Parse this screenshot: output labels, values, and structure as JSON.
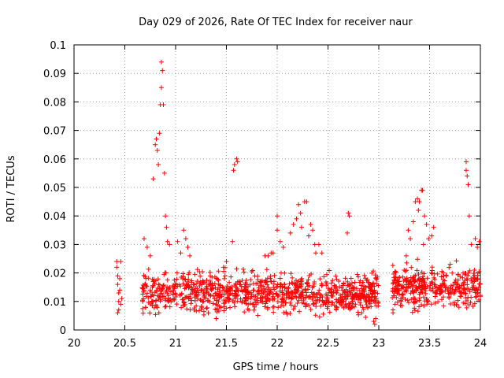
{
  "chart_data": {
    "type": "scatter",
    "title": "Day 029 of 2026, Rate Of TEC Index for receiver naur",
    "xlabel": "GPS time / hours",
    "ylabel": "ROTI / TECUs",
    "xlim": [
      20,
      24
    ],
    "ylim": [
      0,
      0.1
    ],
    "xticks": [
      "20",
      "20.5",
      "21",
      "21.5",
      "22",
      "22.5",
      "23",
      "23.5",
      "24"
    ],
    "yticks": [
      "0",
      "0.01",
      "0.02",
      "0.03",
      "0.04",
      "0.05",
      "0.06",
      "0.07",
      "0.08",
      "0.09",
      "0.1"
    ],
    "grid": true,
    "marker": "+",
    "series": [
      {
        "color": "#ff0000",
        "points": [
          [
            20.42,
            0.024
          ],
          [
            20.42,
            0.022
          ],
          [
            20.43,
            0.019
          ],
          [
            20.43,
            0.016
          ],
          [
            20.44,
            0.013
          ],
          [
            20.44,
            0.01
          ],
          [
            20.44,
            0.007
          ],
          [
            20.45,
            0.014
          ],
          [
            20.45,
            0.018
          ],
          [
            20.46,
            0.009
          ],
          [
            20.47,
            0.011
          ],
          [
            20.43,
            0.006
          ],
          [
            20.46,
            0.024
          ],
          [
            20.86,
            0.094
          ],
          [
            20.87,
            0.091
          ],
          [
            20.86,
            0.085
          ],
          [
            20.85,
            0.079
          ],
          [
            20.88,
            0.079
          ],
          [
            20.81,
            0.067
          ],
          [
            20.8,
            0.065
          ],
          [
            20.82,
            0.063
          ],
          [
            20.84,
            0.069
          ],
          [
            20.83,
            0.058
          ],
          [
            20.78,
            0.053
          ],
          [
            20.89,
            0.055
          ],
          [
            20.9,
            0.04
          ],
          [
            20.91,
            0.036
          ],
          [
            20.92,
            0.031
          ],
          [
            20.94,
            0.03
          ],
          [
            21.08,
            0.035
          ],
          [
            21.1,
            0.032
          ],
          [
            21.12,
            0.029
          ],
          [
            21.14,
            0.026
          ],
          [
            20.69,
            0.032
          ],
          [
            20.72,
            0.029
          ],
          [
            20.75,
            0.026
          ],
          [
            21.02,
            0.031
          ],
          [
            21.05,
            0.027
          ],
          [
            21.57,
            0.056
          ],
          [
            21.58,
            0.058
          ],
          [
            21.6,
            0.06
          ],
          [
            21.61,
            0.059
          ],
          [
            21.56,
            0.031
          ],
          [
            21.5,
            0.024
          ],
          [
            21.47,
            0.022
          ],
          [
            21.88,
            0.026
          ],
          [
            21.91,
            0.026
          ],
          [
            21.94,
            0.027
          ],
          [
            21.96,
            0.027
          ],
          [
            22.0,
            0.04
          ],
          [
            22.0,
            0.035
          ],
          [
            22.03,
            0.031
          ],
          [
            22.06,
            0.029
          ],
          [
            22.13,
            0.034
          ],
          [
            22.16,
            0.037
          ],
          [
            22.19,
            0.039
          ],
          [
            22.21,
            0.044
          ],
          [
            22.23,
            0.041
          ],
          [
            22.27,
            0.045
          ],
          [
            22.29,
            0.045
          ],
          [
            22.24,
            0.036
          ],
          [
            22.31,
            0.033
          ],
          [
            22.33,
            0.037
          ],
          [
            22.35,
            0.035
          ],
          [
            22.37,
            0.03
          ],
          [
            22.38,
            0.027
          ],
          [
            22.41,
            0.03
          ],
          [
            22.44,
            0.027
          ],
          [
            22.7,
            0.041
          ],
          [
            22.71,
            0.04
          ],
          [
            22.69,
            0.034
          ],
          [
            23.29,
            0.035
          ],
          [
            23.31,
            0.032
          ],
          [
            23.34,
            0.038
          ],
          [
            23.36,
            0.045
          ],
          [
            23.38,
            0.046
          ],
          [
            23.4,
            0.045
          ],
          [
            23.42,
            0.049
          ],
          [
            23.43,
            0.049
          ],
          [
            23.39,
            0.042
          ],
          [
            23.45,
            0.04
          ],
          [
            23.47,
            0.037
          ],
          [
            23.49,
            0.032
          ],
          [
            23.52,
            0.033
          ],
          [
            23.54,
            0.036
          ],
          [
            23.44,
            0.03
          ],
          [
            23.86,
            0.059
          ],
          [
            23.86,
            0.056
          ],
          [
            23.87,
            0.054
          ],
          [
            23.88,
            0.051
          ],
          [
            23.89,
            0.04
          ],
          [
            23.91,
            0.03
          ],
          [
            23.95,
            0.032
          ],
          [
            23.97,
            0.029
          ],
          [
            23.99,
            0.031
          ],
          [
            23.15,
            0.012
          ],
          [
            23.16,
            0.009
          ],
          [
            23.18,
            0.014
          ],
          [
            23.2,
            0.017
          ],
          [
            23.22,
            0.01
          ],
          [
            23.25,
            0.021
          ],
          [
            23.27,
            0.026
          ],
          [
            23.14,
            0.006
          ]
        ],
        "dense_bands": [
          {
            "from": 20.67,
            "to": 23.0,
            "min": 0.004,
            "max": 0.025,
            "center": 0.013
          },
          {
            "from": 23.13,
            "to": 24.0,
            "min": 0.006,
            "max": 0.027,
            "center": 0.015
          }
        ],
        "outliers_low": [
          [
            21.4,
            0.004
          ],
          [
            22.95,
            0.003
          ],
          [
            22.96,
            0.002
          ],
          [
            22.97,
            0.004
          ]
        ]
      }
    ]
  }
}
